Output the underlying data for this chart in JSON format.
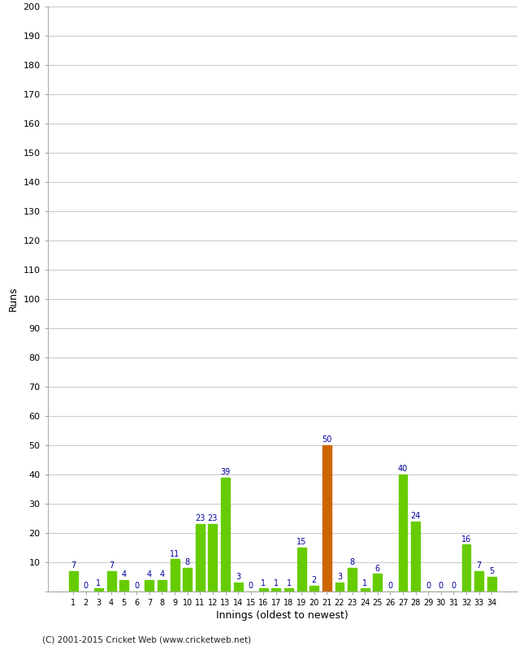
{
  "innings": [
    1,
    2,
    3,
    4,
    5,
    6,
    7,
    8,
    9,
    10,
    11,
    12,
    13,
    14,
    15,
    16,
    17,
    18,
    19,
    20,
    21,
    22,
    23,
    24,
    25,
    26,
    27,
    28,
    29,
    30,
    31,
    32,
    33,
    34
  ],
  "runs": [
    7,
    0,
    1,
    7,
    4,
    0,
    4,
    4,
    11,
    8,
    23,
    23,
    39,
    3,
    0,
    1,
    1,
    1,
    15,
    2,
    50,
    3,
    8,
    1,
    6,
    0,
    40,
    24,
    0,
    0,
    0,
    16,
    7,
    5
  ],
  "highlight_innings": [
    21
  ],
  "bar_color_normal": "#66cc00",
  "bar_color_highlight": "#cc6600",
  "ylabel": "Runs",
  "xlabel": "Innings (oldest to newest)",
  "ylim": [
    0,
    200
  ],
  "yticks": [
    0,
    10,
    20,
    30,
    40,
    50,
    60,
    70,
    80,
    90,
    100,
    110,
    120,
    130,
    140,
    150,
    160,
    170,
    180,
    190,
    200
  ],
  "label_color": "#000099",
  "label_fontsize": 7,
  "footer": "(C) 2001-2015 Cricket Web (www.cricketweb.net)",
  "background_color": "#ffffff",
  "grid_color": "#cccccc"
}
